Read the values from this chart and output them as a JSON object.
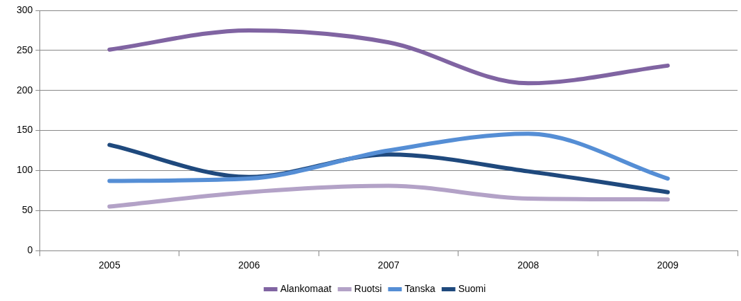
{
  "chart_data": {
    "type": "line",
    "categories": [
      "2005",
      "2006",
      "2007",
      "2008",
      "2009"
    ],
    "series": [
      {
        "name": "Alankomaat",
        "color": "#8064a2",
        "values": [
          251,
          275,
          260,
          209,
          231
        ]
      },
      {
        "name": "Ruotsi",
        "color": "#b3a2c7",
        "values": [
          55,
          73,
          81,
          65,
          64
        ]
      },
      {
        "name": "Tanska",
        "color": "#558ed5",
        "values": [
          87,
          90,
          125,
          146,
          90
        ]
      },
      {
        "name": "Suomi",
        "color": "#1f497d",
        "values": [
          132,
          92,
          120,
          99,
          73
        ]
      }
    ],
    "ylim": [
      0,
      300
    ],
    "yticks": [
      0,
      50,
      100,
      150,
      200,
      250,
      300
    ],
    "grid": "y",
    "legend": "bottom",
    "marker": "none",
    "line_style": "solid"
  }
}
